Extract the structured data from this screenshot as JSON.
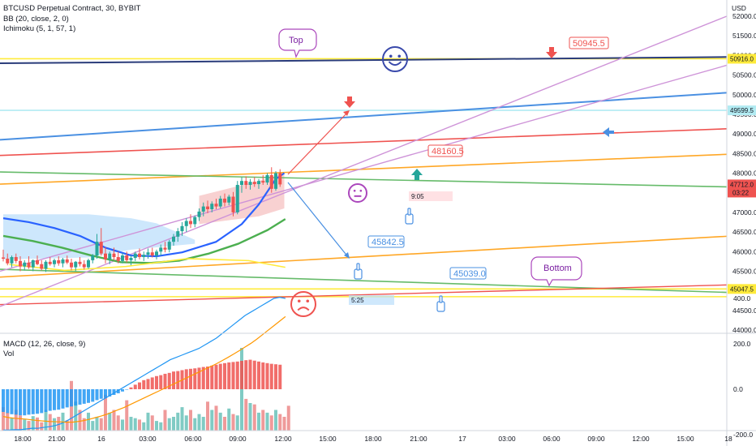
{
  "header": {
    "symbol_line": "BTCUSD Perpetual Contract, 30, BYBIT",
    "indicator_bb": "BB (20, close, 2, 0)",
    "indicator_ichimoku": "Ichimoku (5, 1, 57, 1)",
    "indicator_macd": "MACD (12, 26, close, 9)",
    "indicator_vol": "Vol"
  },
  "colors": {
    "up_candle": "#26a69a",
    "down_candle": "#ef5350",
    "bb_line": "#2962ff",
    "ichimoku_line": "#4caf50",
    "cloud": "#90caf9",
    "trend_violet": "#ce93d8",
    "level_yellow": "#ffeb3b",
    "macd_line": "#2196f3",
    "signal_line": "#ff9800"
  },
  "chart_data": {
    "type": "line",
    "title": "BTCUSD Perpetual Contract, 30, BYBIT",
    "currency": "USD",
    "price_axis": {
      "ticks": [
        52000.0,
        51500.0,
        51000.0,
        50500.0,
        50000.0,
        49500.0,
        49000.0,
        48500.0,
        48000.0,
        47500.0,
        47000.0,
        46500.0,
        46000.0,
        45500.0,
        45000.0,
        44500.0,
        44000.0
      ],
      "tick_labels": [
        "52000.0",
        "51500.0",
        "51000.0",
        "50500.0",
        "50000.0",
        "49500.0",
        "49000.0",
        "48500.0",
        "48000.0",
        "47500.0",
        "47000.0",
        "46500.0",
        "46000.0",
        "45500.0",
        "45000.0",
        "44500.0",
        "44000.0"
      ],
      "range": [
        43980,
        52100
      ]
    },
    "time_axis": {
      "tick_labels": [
        "18:00",
        "21:00",
        "16",
        "03:00",
        "06:00",
        "09:00",
        "12:00",
        "15:00",
        "18:00",
        "21:00",
        "17",
        "03:00",
        "06:00",
        "09:00",
        "12:00",
        "15:00",
        "18"
      ]
    },
    "price_tags": [
      {
        "label": "50916.0",
        "price": 50916,
        "color": "#ffeb3b"
      },
      {
        "label": "49599.5",
        "price": 49600,
        "color": "#b2ebf2"
      },
      {
        "label": "47712.0",
        "sub": "03:22",
        "price": 47712,
        "color": "#ef5350"
      },
      {
        "label": "45047.5",
        "price": 45047,
        "color": "#ffeb3b"
      }
    ],
    "candles": [
      {
        "o": 45850,
        "h": 46050,
        "l": 45750,
        "c": 45820
      },
      {
        "o": 45820,
        "h": 45950,
        "l": 45650,
        "c": 45700
      },
      {
        "o": 45700,
        "h": 45900,
        "l": 45600,
        "c": 45860
      },
      {
        "o": 45860,
        "h": 45950,
        "l": 45700,
        "c": 45760
      },
      {
        "o": 45760,
        "h": 45880,
        "l": 45500,
        "c": 45620
      },
      {
        "o": 45620,
        "h": 45780,
        "l": 45520,
        "c": 45720
      },
      {
        "o": 45720,
        "h": 45880,
        "l": 45560,
        "c": 45600
      },
      {
        "o": 45600,
        "h": 45800,
        "l": 45500,
        "c": 45780
      },
      {
        "o": 45780,
        "h": 45900,
        "l": 45650,
        "c": 45680
      },
      {
        "o": 45680,
        "h": 45780,
        "l": 45520,
        "c": 45560
      },
      {
        "o": 45560,
        "h": 45780,
        "l": 45480,
        "c": 45740
      },
      {
        "o": 45740,
        "h": 45860,
        "l": 45640,
        "c": 45680
      },
      {
        "o": 45680,
        "h": 45820,
        "l": 45600,
        "c": 45780
      },
      {
        "o": 45780,
        "h": 45880,
        "l": 45640,
        "c": 45700
      },
      {
        "o": 45700,
        "h": 45840,
        "l": 45600,
        "c": 45800
      },
      {
        "o": 45800,
        "h": 45900,
        "l": 45680,
        "c": 45720
      },
      {
        "o": 45720,
        "h": 45820,
        "l": 45520,
        "c": 45600
      },
      {
        "o": 45600,
        "h": 45760,
        "l": 45500,
        "c": 45740
      },
      {
        "o": 45740,
        "h": 45860,
        "l": 45620,
        "c": 45680
      },
      {
        "o": 45680,
        "h": 45780,
        "l": 45540,
        "c": 45600
      },
      {
        "o": 45600,
        "h": 45820,
        "l": 45560,
        "c": 45780
      },
      {
        "o": 45780,
        "h": 45940,
        "l": 45700,
        "c": 45900
      },
      {
        "o": 45900,
        "h": 46450,
        "l": 45820,
        "c": 46250
      },
      {
        "o": 46250,
        "h": 46600,
        "l": 45900,
        "c": 45950
      },
      {
        "o": 45950,
        "h": 46120,
        "l": 45700,
        "c": 45800
      },
      {
        "o": 45800,
        "h": 46000,
        "l": 45680,
        "c": 45950
      },
      {
        "o": 45950,
        "h": 46100,
        "l": 45780,
        "c": 45860
      },
      {
        "o": 45860,
        "h": 46000,
        "l": 45700,
        "c": 45760
      },
      {
        "o": 45760,
        "h": 45960,
        "l": 45700,
        "c": 45900
      },
      {
        "o": 45900,
        "h": 46000,
        "l": 45720,
        "c": 45780
      },
      {
        "o": 45780,
        "h": 45900,
        "l": 45650,
        "c": 45840
      },
      {
        "o": 45840,
        "h": 46000,
        "l": 45760,
        "c": 45950
      },
      {
        "o": 45950,
        "h": 46080,
        "l": 45800,
        "c": 45860
      },
      {
        "o": 45860,
        "h": 46000,
        "l": 45760,
        "c": 45920
      },
      {
        "o": 45920,
        "h": 46080,
        "l": 45820,
        "c": 45980
      },
      {
        "o": 45980,
        "h": 46100,
        "l": 45850,
        "c": 45900
      },
      {
        "o": 45900,
        "h": 46050,
        "l": 45800,
        "c": 46000
      },
      {
        "o": 46000,
        "h": 46180,
        "l": 45900,
        "c": 46100
      },
      {
        "o": 46100,
        "h": 46250,
        "l": 45980,
        "c": 46050
      },
      {
        "o": 46050,
        "h": 46300,
        "l": 45980,
        "c": 46250
      },
      {
        "o": 46250,
        "h": 46450,
        "l": 46150,
        "c": 46380
      },
      {
        "o": 46380,
        "h": 46600,
        "l": 46250,
        "c": 46520
      },
      {
        "o": 46520,
        "h": 46750,
        "l": 46400,
        "c": 46650
      },
      {
        "o": 46650,
        "h": 46850,
        "l": 46500,
        "c": 46780
      },
      {
        "o": 46780,
        "h": 46950,
        "l": 46600,
        "c": 46700
      },
      {
        "o": 46700,
        "h": 46920,
        "l": 46620,
        "c": 46880
      },
      {
        "o": 46880,
        "h": 47100,
        "l": 46780,
        "c": 47020
      },
      {
        "o": 47020,
        "h": 47250,
        "l": 46900,
        "c": 47150
      },
      {
        "o": 47150,
        "h": 47300,
        "l": 46980,
        "c": 47080
      },
      {
        "o": 47080,
        "h": 47280,
        "l": 47000,
        "c": 47220
      },
      {
        "o": 47220,
        "h": 47350,
        "l": 47080,
        "c": 47150
      },
      {
        "o": 47150,
        "h": 47420,
        "l": 47100,
        "c": 47350
      },
      {
        "o": 47350,
        "h": 47480,
        "l": 47150,
        "c": 47250
      },
      {
        "o": 47250,
        "h": 47450,
        "l": 47180,
        "c": 47400
      },
      {
        "o": 47400,
        "h": 47520,
        "l": 46900,
        "c": 47000
      },
      {
        "o": 47000,
        "h": 47800,
        "l": 46950,
        "c": 47700
      },
      {
        "o": 47700,
        "h": 47900,
        "l": 47500,
        "c": 47800
      },
      {
        "o": 47800,
        "h": 47920,
        "l": 47600,
        "c": 47700
      },
      {
        "o": 47700,
        "h": 47850,
        "l": 47580,
        "c": 47780
      },
      {
        "o": 47780,
        "h": 47900,
        "l": 47650,
        "c": 47720
      },
      {
        "o": 47720,
        "h": 47850,
        "l": 47600,
        "c": 47800
      },
      {
        "o": 47800,
        "h": 47950,
        "l": 47700,
        "c": 47760
      },
      {
        "o": 47760,
        "h": 48000,
        "l": 47700,
        "c": 47950
      },
      {
        "o": 47950,
        "h": 48150,
        "l": 47500,
        "c": 47600
      },
      {
        "o": 47600,
        "h": 48050,
        "l": 47550,
        "c": 48000
      },
      {
        "o": 48000,
        "h": 48100,
        "l": 47650,
        "c": 47712
      }
    ],
    "bb_basis": [
      [
        0,
        47740
      ],
      [
        6,
        47830
      ],
      [
        12,
        47780
      ],
      [
        18,
        47420
      ],
      [
        24,
        46920
      ],
      [
        30,
        46400
      ],
      [
        36,
        46100
      ],
      [
        42,
        46080
      ],
      [
        50,
        46320
      ],
      [
        60,
        46860
      ],
      [
        70,
        47300
      ],
      [
        80,
        47700
      ],
      [
        90,
        48020
      ]
    ],
    "ichimoku_line": [
      [
        0,
        46650
      ],
      [
        10,
        46520
      ],
      [
        20,
        46350
      ],
      [
        30,
        46150
      ],
      [
        40,
        45980
      ],
      [
        50,
        45960
      ],
      [
        60,
        46020
      ],
      [
        70,
        46200
      ],
      [
        80,
        46450
      ],
      [
        90,
        46800
      ],
      [
        96,
        47080
      ]
    ],
    "ichimoku_cloud_top": [
      [
        0,
        46950
      ],
      [
        20,
        46950
      ],
      [
        30,
        46850
      ],
      [
        36,
        46720
      ],
      [
        45,
        46300
      ]
    ],
    "ichimoku_cloud_bottom": [
      [
        0,
        45800
      ],
      [
        20,
        45850
      ],
      [
        30,
        46050
      ],
      [
        45,
        46200
      ]
    ],
    "yellow_curve": [
      [
        2,
        45750
      ],
      [
        20,
        45600
      ],
      [
        40,
        45700
      ],
      [
        60,
        45900
      ],
      [
        80,
        45850
      ],
      [
        92,
        45680
      ]
    ],
    "trend_lines": [
      {
        "price_start": 50800,
        "price_end": 50960,
        "color": "#2a3c7a",
        "width": 2
      },
      {
        "price_start": 48850,
        "price_end": 50050,
        "color": "#4a90e2",
        "width": 2
      },
      {
        "price_start": 48450,
        "price_end": 49130,
        "color": "#ef5350",
        "width": 1.6
      },
      {
        "price_start": 47720,
        "price_end": 48480,
        "color": "#ffa726",
        "width": 1.6
      },
      {
        "price_start": 48030,
        "price_end": 47650,
        "color": "#66bb6a",
        "width": 1.6
      },
      {
        "price_start": 45350,
        "price_end": 46390,
        "color": "#ffa726",
        "width": 1.6
      },
      {
        "price_start": 45550,
        "price_end": 44960,
        "color": "#66bb6a",
        "width": 1.6
      },
      {
        "price_start": 44650,
        "price_end": 45150,
        "color": "#ef5350",
        "width": 1.4
      }
    ],
    "horizontal_levels": [
      50916,
      49600,
      45047,
      44850
    ],
    "annotations": {
      "top_label": "Top",
      "bottom_label": "Bottom",
      "value_50945": "50945.5",
      "value_48160": "48160.5",
      "value_45842": "45842.5",
      "value_45039": "45039.0",
      "time_905": "9:05",
      "time_525": "5:25"
    },
    "macd_axis": {
      "tick_labels": [
        "400.0",
        "200.0",
        "0.0",
        "-200.0"
      ]
    },
    "macd_hist": [
      -100,
      -105,
      -110,
      -112,
      -115,
      -115,
      -112,
      -110,
      -108,
      -105,
      -100,
      -95,
      -92,
      -90,
      -85,
      -80,
      -76,
      -72,
      -68,
      -64,
      -60,
      -55,
      -48,
      -42,
      -38,
      -32,
      -25,
      -18,
      -10,
      -2,
      8,
      20,
      30,
      40,
      45,
      52,
      58,
      62,
      68,
      72,
      78,
      80,
      84,
      88,
      90,
      92,
      95,
      98,
      100,
      104,
      108,
      112,
      115,
      118,
      120,
      122,
      125,
      128,
      130,
      126,
      122,
      118,
      115,
      112,
      110,
      108
    ],
    "macd_line": [
      -180,
      -180,
      -178,
      -178,
      -175,
      -172,
      -172,
      -168,
      -165,
      -160,
      -152,
      -140,
      -125,
      -110,
      -95,
      -80,
      -65,
      -50,
      -35,
      -20,
      -5,
      10,
      25,
      40,
      55,
      70,
      85,
      100,
      115,
      130,
      140,
      150,
      160,
      170,
      180,
      195,
      210,
      225,
      245,
      265,
      285,
      305,
      325,
      340,
      355,
      370,
      385,
      400,
      405,
      400
    ],
    "signal_line": [
      -120,
      -125,
      -128,
      -130,
      -132,
      -135,
      -138,
      -140,
      -142,
      -143,
      -144,
      -145,
      -145,
      -142,
      -138,
      -132,
      -125,
      -118,
      -110,
      -100,
      -90,
      -80,
      -68,
      -56,
      -44,
      -32,
      -20,
      -8,
      4,
      16,
      28,
      40,
      52,
      64,
      76,
      88,
      100,
      112,
      126,
      140,
      155,
      170,
      186,
      202,
      220,
      240,
      260,
      280,
      300,
      320
    ],
    "volume": [
      340,
      260,
      180,
      300,
      220,
      160,
      140,
      210,
      190,
      120,
      300,
      240,
      180,
      200,
      260,
      150,
      720,
      420,
      300,
      180,
      260,
      140,
      200,
      180,
      520,
      260,
      300,
      220,
      160,
      440,
      200,
      180,
      160,
      120,
      260,
      220,
      140,
      120,
      300,
      180,
      200,
      260,
      340,
      220,
      300,
      180,
      240,
      200,
      420,
      300,
      360,
      260,
      200,
      320,
      240,
      220,
      1200,
      460,
      400,
      380,
      260,
      300,
      260,
      220,
      300,
      240,
      200,
      360
    ]
  }
}
